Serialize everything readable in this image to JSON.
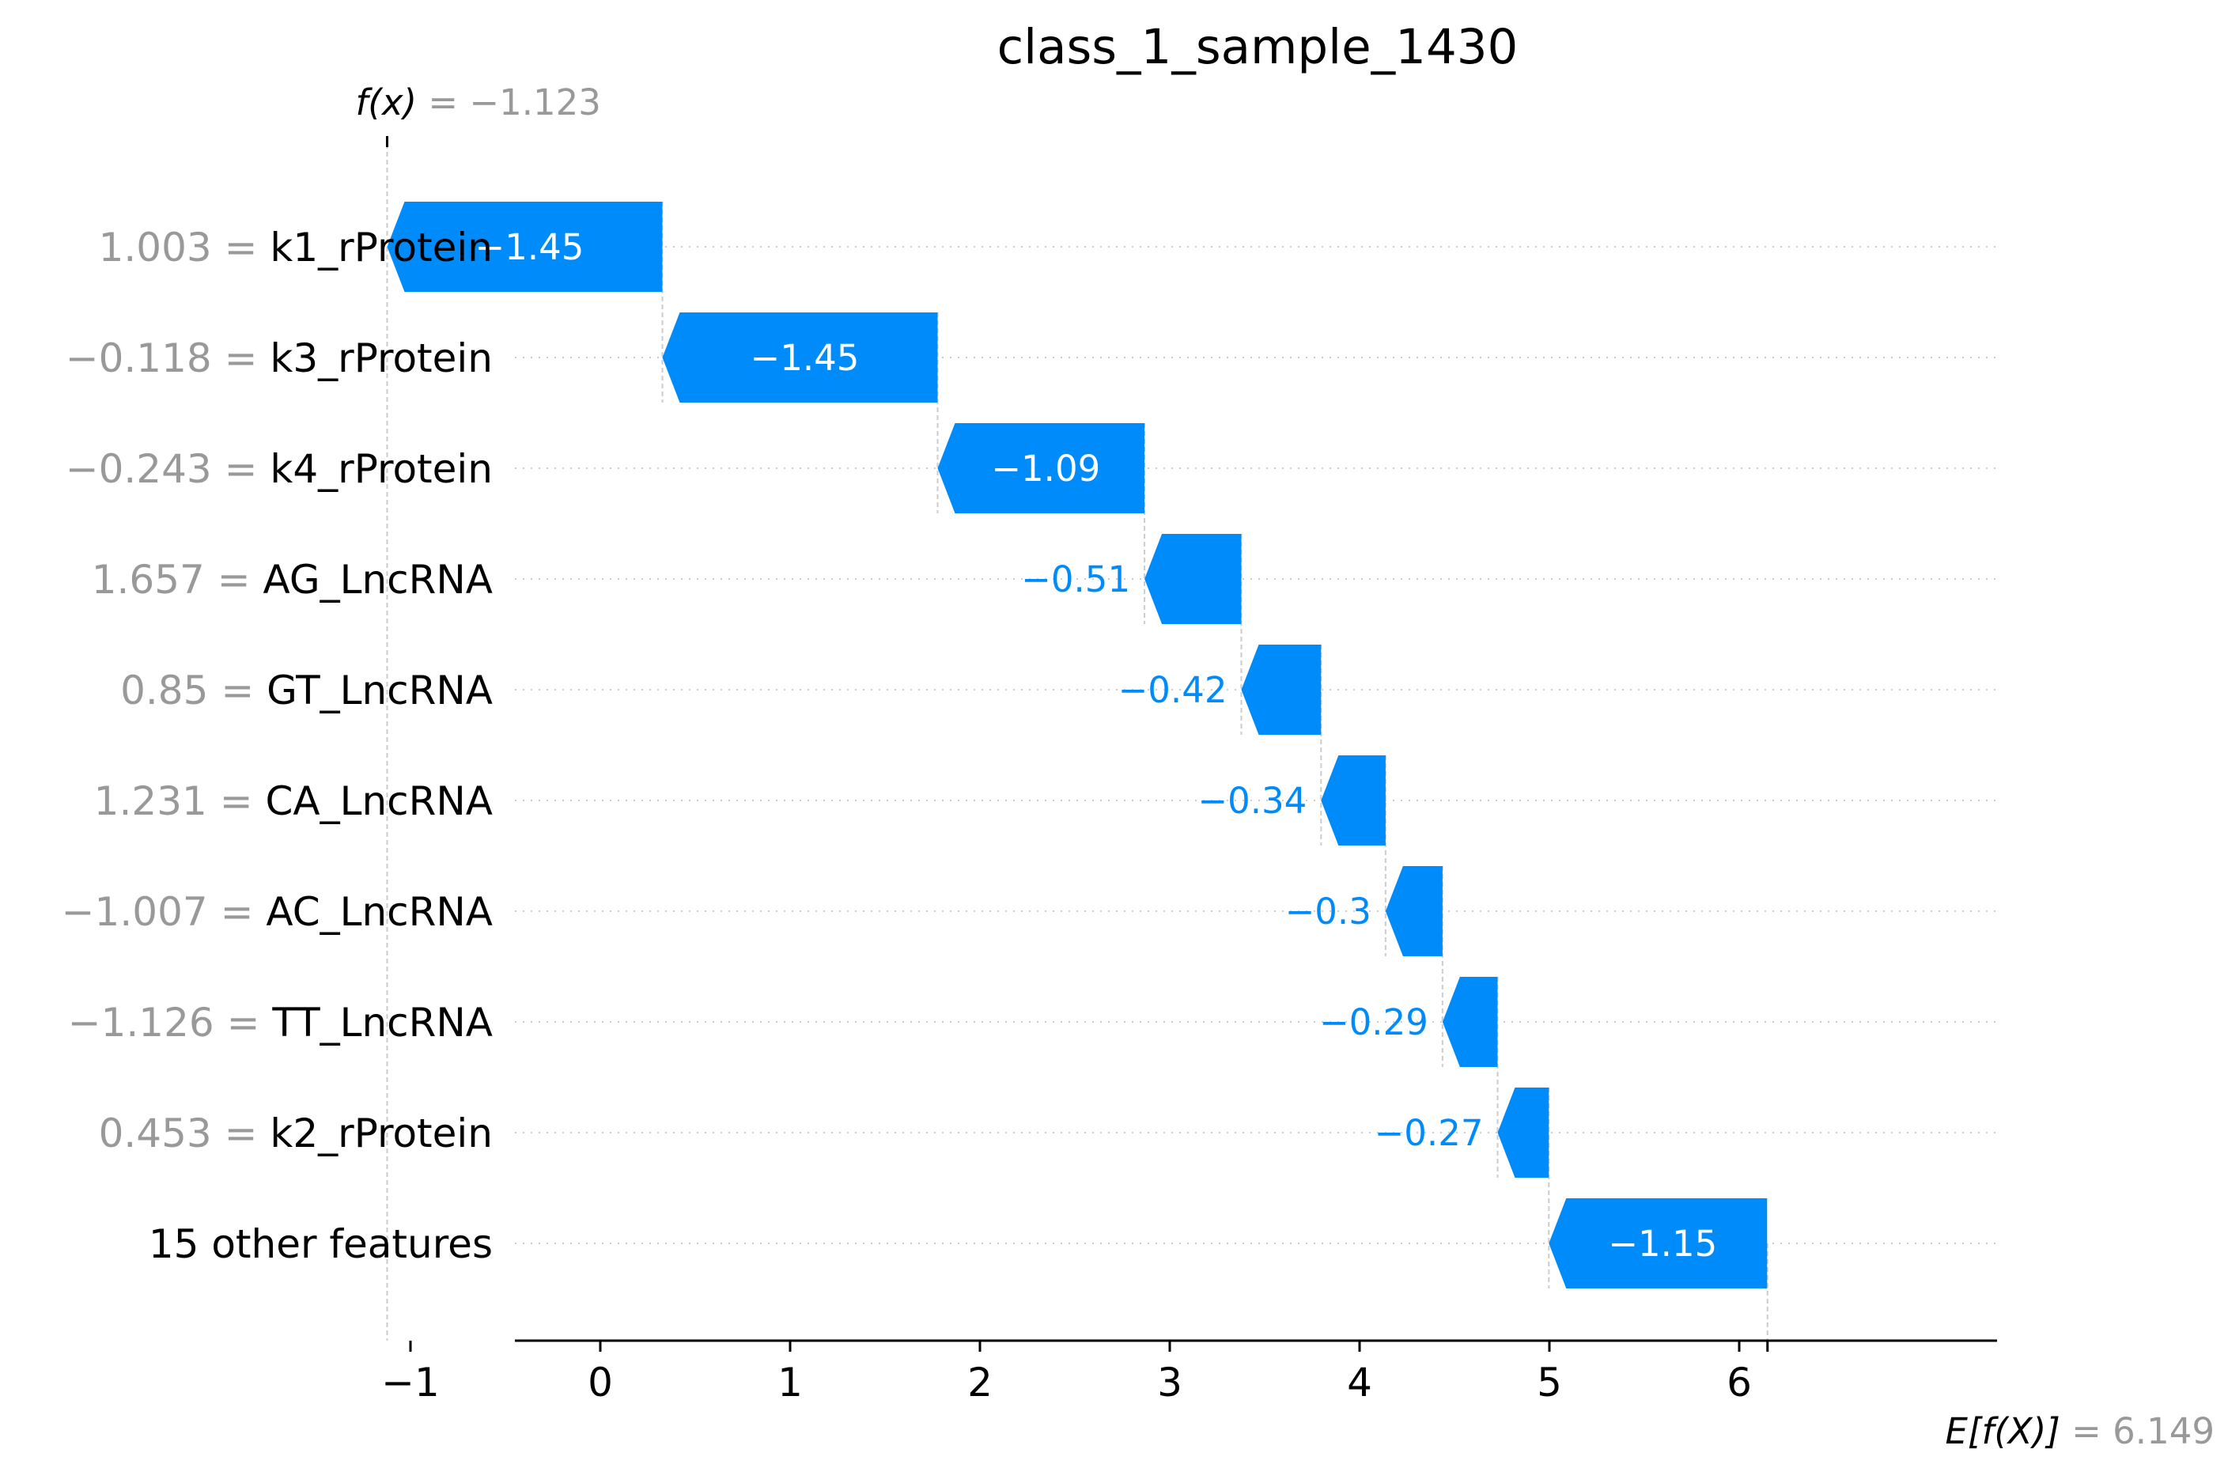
{
  "chart_data": {
    "type": "waterfall",
    "title": "class_1_sample_1430",
    "fx": {
      "label": "f(x)",
      "value_text": " = −1.123",
      "value": -1.123
    },
    "base": {
      "label": "E[f(X)]",
      "value_text": " = 6.149",
      "value": 6.149
    },
    "xlim": [
      -1.6,
      6.2
    ],
    "x_ticks": [
      {
        "value": -1,
        "label": "−1"
      },
      {
        "value": 0,
        "label": "0"
      },
      {
        "value": 1,
        "label": "1"
      },
      {
        "value": 2,
        "label": "2"
      },
      {
        "value": 3,
        "label": "3"
      },
      {
        "value": 4,
        "label": "4"
      },
      {
        "value": 5,
        "label": "5"
      },
      {
        "value": 6,
        "label": "6"
      }
    ],
    "features": [
      {
        "value_text": "1.003 = ",
        "name": "k1_rProtein",
        "contribution": -1.45,
        "label": "−1.45"
      },
      {
        "value_text": "−0.118 = ",
        "name": "k3_rProtein",
        "contribution": -1.45,
        "label": "−1.45"
      },
      {
        "value_text": "−0.243 = ",
        "name": "k4_rProtein",
        "contribution": -1.09,
        "label": "−1.09"
      },
      {
        "value_text": "1.657 = ",
        "name": "AG_LncRNA",
        "contribution": -0.51,
        "label": "−0.51"
      },
      {
        "value_text": "0.85 = ",
        "name": "GT_LncRNA",
        "contribution": -0.42,
        "label": "−0.42"
      },
      {
        "value_text": "1.231 = ",
        "name": "CA_LncRNA",
        "contribution": -0.34,
        "label": "−0.34"
      },
      {
        "value_text": "−1.007 = ",
        "name": "AC_LncRNA",
        "contribution": -0.3,
        "label": "−0.3"
      },
      {
        "value_text": "−1.126 = ",
        "name": "TT_LncRNA",
        "contribution": -0.29,
        "label": "−0.29"
      },
      {
        "value_text": "0.453 = ",
        "name": "k2_rProtein",
        "contribution": -0.27,
        "label": "−0.27"
      },
      {
        "value_text": "",
        "name": "15 other features",
        "contribution": -1.15,
        "label": "−1.15"
      }
    ],
    "colors": {
      "negative": "#008bfb",
      "grid": "#cccccc",
      "muted": "#999999"
    }
  }
}
